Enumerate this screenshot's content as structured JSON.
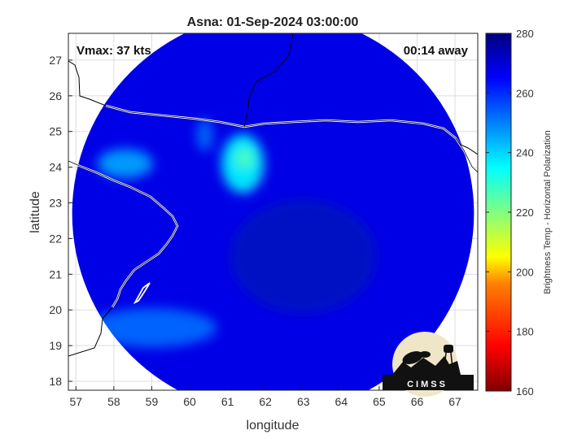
{
  "chart_data": {
    "type": "heatmap",
    "title": "Asna: 01-Sep-2024 03:00:00",
    "xlabel": "longitude",
    "ylabel": "latitude",
    "xlim": [
      56.8,
      67.6
    ],
    "ylim": [
      17.75,
      27.75
    ],
    "xticks": [
      57,
      58,
      59,
      60,
      61,
      62,
      63,
      64,
      65,
      66,
      67
    ],
    "yticks": [
      18,
      19,
      20,
      21,
      22,
      23,
      24,
      25,
      26,
      27
    ],
    "grid": true,
    "annotations": {
      "vmax": "Vmax: 37 kts",
      "time_away": "00:14 away"
    },
    "colorbar": {
      "label": "Brightness Temp - Horizontal Polarization",
      "range": [
        160,
        280
      ],
      "ticks": [
        160,
        180,
        200,
        220,
        240,
        260,
        280
      ],
      "colormap": [
        "#800000",
        "#ff0000",
        "#ff8000",
        "#ffff00",
        "#80ff80",
        "#00ffff",
        "#0080ff",
        "#0000ff",
        "#000080"
      ]
    },
    "swath": {
      "center_lon": 62.2,
      "center_lat": 22.7,
      "radius_deg": 5.3
    },
    "features": [
      {
        "name": "warm core",
        "lon": 61.4,
        "lat": 24.1,
        "value": 235
      },
      {
        "name": "coastal band",
        "lon": 58.3,
        "lat": 24.1,
        "value": 245
      },
      {
        "name": "southwest band",
        "lon": 59.0,
        "lat": 19.5,
        "value": 252
      },
      {
        "name": "background ocean",
        "lon": 63.0,
        "lat": 21.5,
        "value": 268
      }
    ]
  },
  "logo": {
    "text": "CIMSS"
  }
}
